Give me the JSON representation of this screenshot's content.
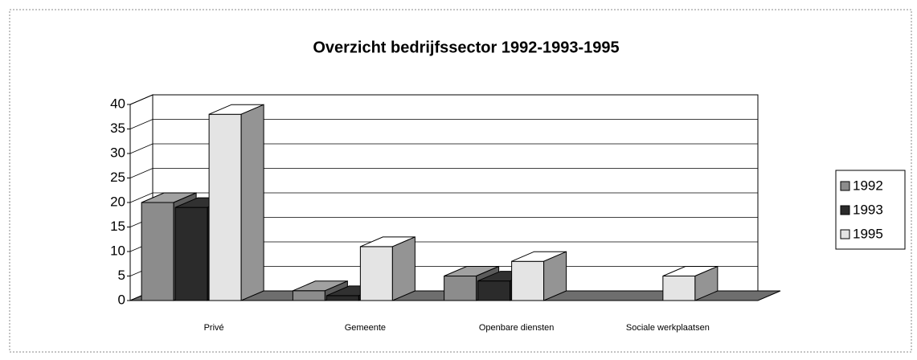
{
  "chart_data": {
    "type": "bar3d",
    "title": "Overzicht bedrijfssector 1992-1993-1995",
    "categories": [
      "Privé",
      "Gemeente",
      "Openbare diensten",
      "Sociale werkplaatsen"
    ],
    "series": [
      {
        "name": "1992",
        "color": "#8c8c8c",
        "values": [
          20,
          2,
          5,
          0
        ]
      },
      {
        "name": "1993",
        "color": "#2b2b2b",
        "values": [
          19,
          1,
          4,
          0
        ]
      },
      {
        "name": "1995",
        "color": "#e4e4e4",
        "values": [
          38,
          11,
          8,
          5
        ]
      }
    ],
    "ylim": [
      0,
      40
    ],
    "yticks": [
      0,
      5,
      10,
      15,
      20,
      25,
      30,
      35,
      40
    ],
    "grid": true,
    "legend": "right"
  }
}
